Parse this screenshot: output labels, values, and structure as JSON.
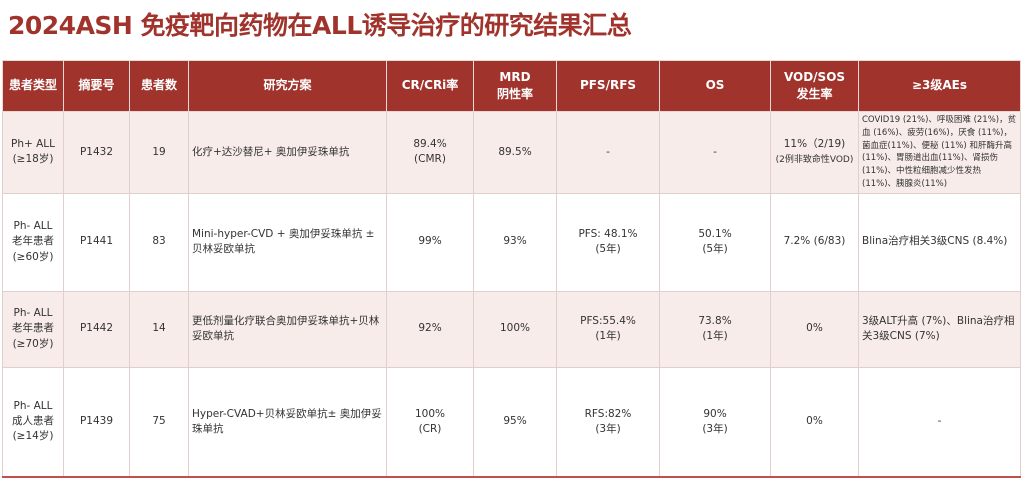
{
  "title": "2024ASH 免疫靶向药物在ALL诱导治疗的研究结果汇总",
  "colors": {
    "header_bg": "#a0332b",
    "title": "#a0332b",
    "row_pink": "#f8eceb"
  },
  "table": {
    "headers": [
      "患者类型",
      "摘要号",
      "患者数",
      "研究方案",
      "CR/CRi率",
      "MRD\n阴性率",
      "PFS/RFS",
      "OS",
      "VOD/SOS\n发生率",
      "≥3级AEs"
    ],
    "rows": [
      {
        "patient_type": [
          "Ph+ ALL",
          "(≥18岁)"
        ],
        "abstract": "P1432",
        "n": "19",
        "regimen": "化疗+达沙替尼+ 奥加伊妥珠单抗",
        "cr": [
          "89.4%",
          "(CMR)"
        ],
        "mrd": "89.5%",
        "pfs": [
          "-"
        ],
        "os": [
          "-"
        ],
        "vod": [
          "11%（2/19)",
          "(2例非致命性VOD)"
        ],
        "aes": "COVID19 (21%)、呼吸困难 (21%)，贫血 (16%)、疲劳(16%)，厌食 (11%)，菌血症(11%)、便秘 (11%) 和肝酶升高 (11%)、胃肠道出血(11%)、肾损伤 (11%)、中性粒细胞减少性发热 (11%)、胰腺炎(11%)"
      },
      {
        "patient_type": [
          "Ph- ALL",
          "老年患者",
          "(≥60岁)"
        ],
        "abstract": "P1441",
        "n": "83",
        "regimen": "Mini-hyper-CVD + 奥加伊妥珠单抗 ± 贝林妥欧单抗",
        "cr": [
          "99%"
        ],
        "mrd": "93%",
        "pfs": [
          "PFS: 48.1%",
          "(5年)"
        ],
        "os": [
          "50.1%",
          "(5年)"
        ],
        "vod": [
          "7.2% (6/83)"
        ],
        "aes": "Blina治疗相关3级CNS (8.4%)"
      },
      {
        "patient_type": [
          "Ph- ALL",
          "老年患者",
          "(≥70岁)"
        ],
        "abstract": "P1442",
        "n": "14",
        "regimen": "更低剂量化疗联合奥加伊妥珠单抗+贝林妥欧单抗",
        "cr": [
          "92%"
        ],
        "mrd": "100%",
        "pfs": [
          "PFS:55.4%",
          "(1年)"
        ],
        "os": [
          "73.8%",
          "(1年)"
        ],
        "vod": [
          "0%"
        ],
        "aes": "3级ALT升高 (7%)、Blina治疗相关3级CNS (7%)"
      },
      {
        "patient_type": [
          "Ph- ALL",
          "成人患者",
          "(≥14岁)"
        ],
        "abstract": "P1439",
        "n": "75",
        "regimen": "Hyper-CVAD+贝林妥欧单抗± 奥加伊妥珠单抗",
        "cr": [
          "100%",
          "(CR)"
        ],
        "mrd": "95%",
        "pfs": [
          "RFS:82%",
          "(3年)"
        ],
        "os": [
          "90%",
          "(3年)"
        ],
        "vod": [
          "0%"
        ],
        "aes": "-"
      }
    ]
  }
}
